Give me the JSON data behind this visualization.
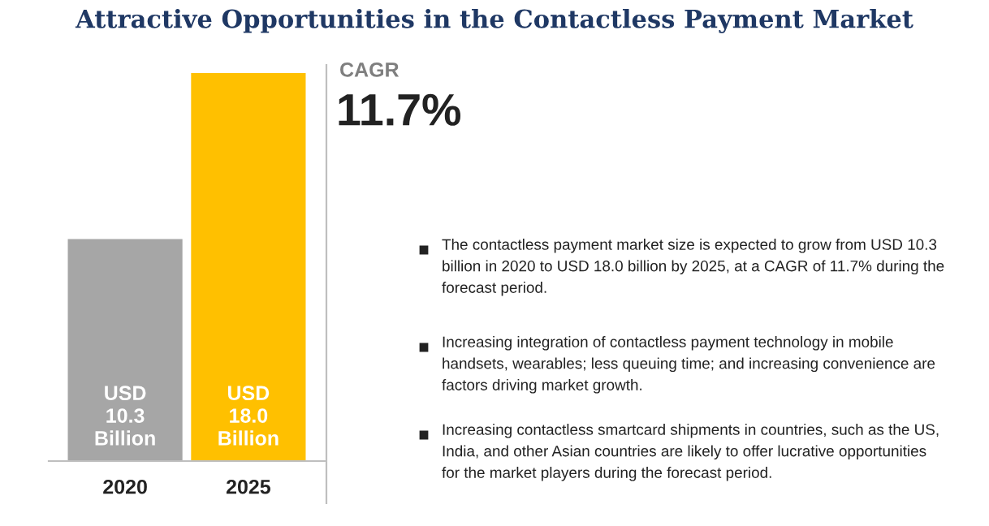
{
  "chart_data": {
    "type": "bar",
    "title": "Attractive Opportunities in the Contactless Payment Market",
    "categories": [
      "2020",
      "2025"
    ],
    "values": [
      10.3,
      18.0
    ],
    "colors": [
      "#a6a6a6",
      "#ffc000"
    ],
    "value_labels": [
      "USD\n10.3\nBillion",
      "USD\n18.0\nBillion"
    ],
    "annotations": [
      "CAGR",
      "11.7%",
      "The contactless payment market size is expected to grow from USD 10.3\nbillion in 2020 to USD 18.0 billion by 2025, at a CAGR of 11.7% during the\nforecast period.",
      "Increasing integration of contactless payment technology in mobile\nhandsets, wearables; less queuing time; and increasing convenience are\nfactors driving market growth.",
      "Increasing contactless smartcard shipments in countries, such as the US,\nIndia, and other Asian countries are likely to offer lucrative opportunities\nfor the market players during the forecast period."
    ]
  }
}
